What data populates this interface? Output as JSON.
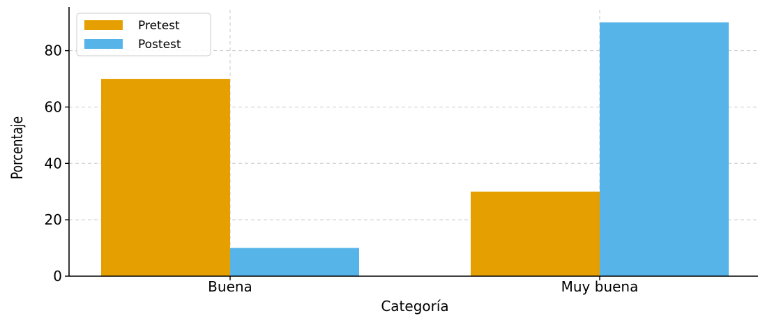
{
  "chart_data": {
    "type": "bar",
    "title": "",
    "xlabel": "Categoría",
    "ylabel": "Porcentaje",
    "categories": [
      "Buena",
      "Muy buena"
    ],
    "series": [
      {
        "name": "Pretest",
        "values": [
          70,
          30
        ],
        "color": "#E69F00"
      },
      {
        "name": "Postest",
        "values": [
          10,
          90
        ],
        "color": "#56B4E9"
      }
    ],
    "ylim": [
      0,
      94.5
    ],
    "yticks": [
      0,
      20,
      40,
      60,
      80
    ],
    "grid": true,
    "legend_position": "top-left"
  }
}
